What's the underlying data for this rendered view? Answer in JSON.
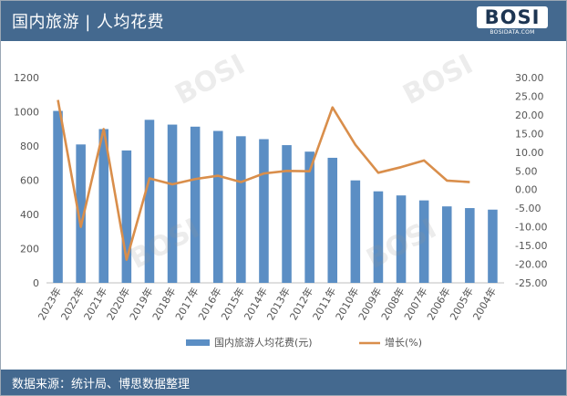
{
  "header": {
    "title": "国内旅游 | 人均花费",
    "logo_text": "BOSI",
    "logo_sub": "BOSIDATA.COM"
  },
  "footer": {
    "source": "数据来源：统计局、博思数据整理"
  },
  "watermarks": [
    "BOSI",
    "BOSI",
    "BOSI",
    "BOSI"
  ],
  "colors": {
    "header_bg": "#44698f",
    "bar": "#5b8ec4",
    "line": "#d98e4b",
    "axis_text": "#555555",
    "grid": "#e3e3e3"
  },
  "chart_data": {
    "type": "bar",
    "categories": [
      "2023年",
      "2022年",
      "2021年",
      "2020年",
      "2019年",
      "2018年",
      "2017年",
      "2016年",
      "2015年",
      "2014年",
      "2013年",
      "2012年",
      "2011年",
      "2010年",
      "2009年",
      "2008年",
      "2007年",
      "2006年",
      "2005年",
      "2004年"
    ],
    "series": [
      {
        "name": "国内旅游人均花费(元)",
        "type": "bar",
        "axis": "left",
        "values": [
          1005,
          809,
          899,
          774,
          953,
          925,
          913,
          888,
          857,
          840,
          805,
          767,
          731,
          599,
          535,
          511,
          482,
          447,
          437,
          428
        ]
      },
      {
        "name": "增长(%)",
        "type": "line",
        "axis": "right",
        "values": [
          24.0,
          -10.0,
          16.2,
          -18.8,
          3.0,
          1.4,
          2.8,
          3.7,
          2.0,
          4.3,
          5.0,
          4.9,
          22.0,
          12.0,
          4.5,
          6.0,
          7.8,
          2.4,
          2.0,
          null
        ]
      }
    ],
    "y_left": {
      "min": 0,
      "max": 1200,
      "ticks": [
        0,
        200,
        400,
        600,
        800,
        1000,
        1200
      ]
    },
    "y_right": {
      "min": -25,
      "max": 30,
      "ticks": [
        "30.00",
        "25.00",
        "20.00",
        "15.00",
        "10.00",
        "5.00",
        "0.00",
        "-5.00",
        "-10.00",
        "-15.00",
        "-20.00",
        "-25.00"
      ]
    },
    "grid": false,
    "legend_position": "bottom"
  }
}
